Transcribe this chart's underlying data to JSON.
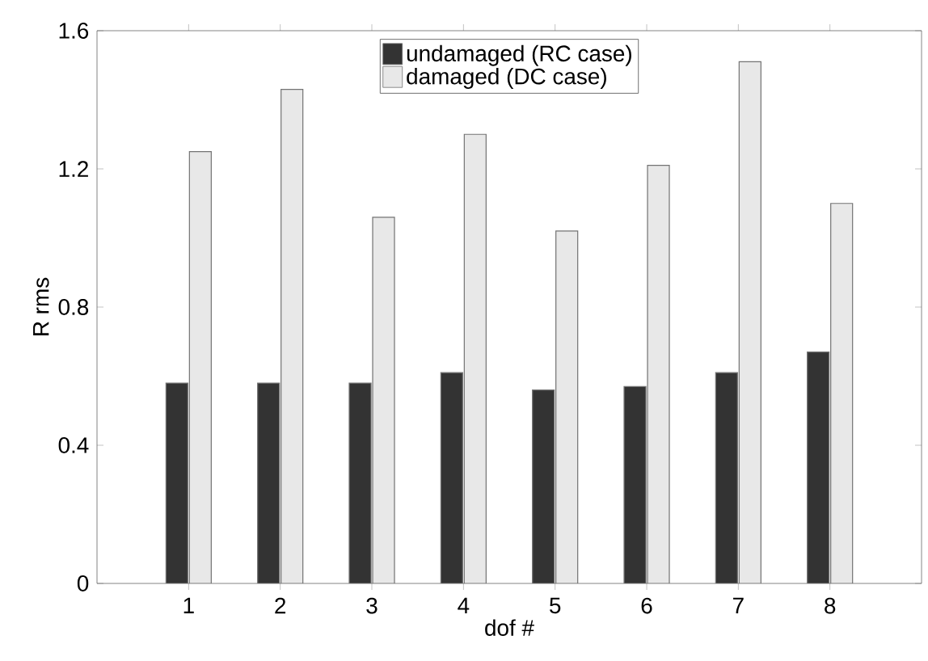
{
  "chart_data": {
    "type": "bar",
    "categories": [
      "1",
      "2",
      "3",
      "4",
      "5",
      "6",
      "7",
      "8"
    ],
    "series": [
      {
        "name": "undamaged (RC case)",
        "color": "#333333",
        "values": [
          0.58,
          0.58,
          0.58,
          0.61,
          0.56,
          0.57,
          0.61,
          0.67
        ]
      },
      {
        "name": "damaged (DC case)",
        "color": "#e8e8e8",
        "values": [
          1.25,
          1.43,
          1.06,
          1.3,
          1.02,
          1.21,
          1.51,
          1.1
        ]
      }
    ],
    "xlabel": "dof #",
    "ylabel": "R rms",
    "ylim": [
      0,
      1.6
    ],
    "yticks": [
      0,
      0.4,
      0.8,
      1.2,
      1.6
    ],
    "legend": "top"
  }
}
